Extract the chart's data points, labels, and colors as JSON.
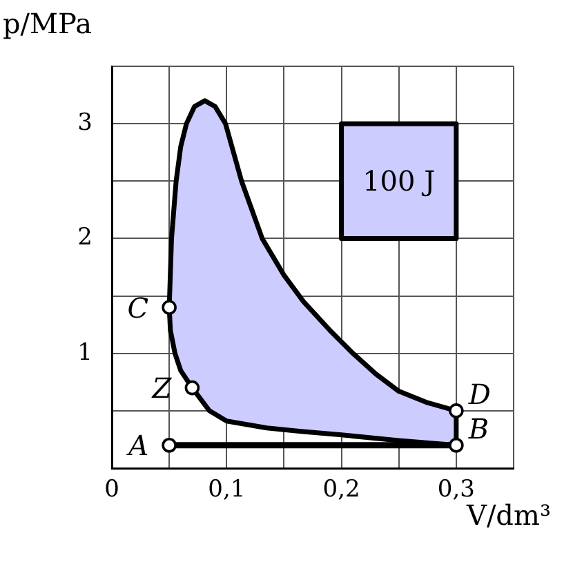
{
  "chart_data": {
    "type": "line",
    "xlabel": "V/dm³",
    "ylabel": "p/MPa",
    "xlim": [
      0,
      0.35
    ],
    "ylim": [
      0,
      3.5
    ],
    "xticks": [
      0,
      {
        "value": 0.05,
        "label": null
      },
      {
        "value": 0.1,
        "label": "0,1"
      },
      {
        "value": 0.15,
        "label": null
      },
      {
        "value": 0.2,
        "label": "0,2"
      },
      {
        "value": 0.25,
        "label": null
      },
      {
        "value": 0.3,
        "label": "0,3"
      },
      {
        "value": 0.35,
        "label": null
      }
    ],
    "yticks": [
      {
        "value": 0,
        "label": null
      },
      {
        "value": 0.5,
        "label": null
      },
      1,
      {
        "value": 1.5,
        "label": null
      },
      2,
      {
        "value": 2.5,
        "label": null
      },
      3,
      {
        "value": 3.5,
        "label": null
      }
    ],
    "grid": true,
    "legend": false,
    "series": [
      {
        "type": "area",
        "color": "#ccccff",
        "x": [
          0.05,
          0.052,
          0.056,
          0.06,
          0.065,
          0.072,
          0.081,
          0.09,
          0.099,
          0.113,
          0.131,
          0.15,
          0.167,
          0.19,
          0.21,
          0.23,
          0.25,
          0.275,
          0.3,
          0.3,
          0.25,
          0.2,
          0.165,
          0.135,
          0.1,
          0.085,
          0.07,
          0.06,
          0.055,
          0.051,
          0.05
        ],
        "values": [
          1.4,
          2.0,
          2.5,
          2.8,
          3.0,
          3.15,
          3.2,
          3.15,
          3.0,
          2.5,
          2.0,
          1.68,
          1.45,
          1.2,
          1.0,
          0.82,
          0.67,
          0.57,
          0.5,
          0.2,
          0.24,
          0.29,
          0.32,
          0.35,
          0.41,
          0.5,
          0.7,
          0.85,
          1.0,
          1.2,
          1.4
        ]
      },
      {
        "type": "line",
        "color": "#000000",
        "x": [
          0.05,
          0.3
        ],
        "values": [
          0.2,
          0.2
        ]
      },
      {
        "type": "area",
        "color": "#ccccff",
        "x": [
          0.2,
          0.3,
          0.3,
          0.2,
          0.2
        ],
        "values": [
          2,
          2,
          3,
          3,
          2
        ]
      },
      {
        "type": "scatter",
        "color": "#ffffff",
        "marker": "circle",
        "x": [
          0.05,
          0.3,
          0.05,
          0.3,
          0.07
        ],
        "values": [
          0.2,
          0.2,
          1.4,
          0.5,
          0.7
        ]
      }
    ],
    "annotations": [
      {
        "text": "A",
        "x": 0.05,
        "y": 0.2
      },
      {
        "text": "B",
        "x": 0.3,
        "y": 0.2
      },
      {
        "text": "C",
        "x": 0.05,
        "y": 1.4
      },
      {
        "text": "D",
        "x": 0.3,
        "y": 0.5
      },
      {
        "text": "Z",
        "x": 0.07,
        "y": 0.7
      },
      "100 J"
    ]
  }
}
